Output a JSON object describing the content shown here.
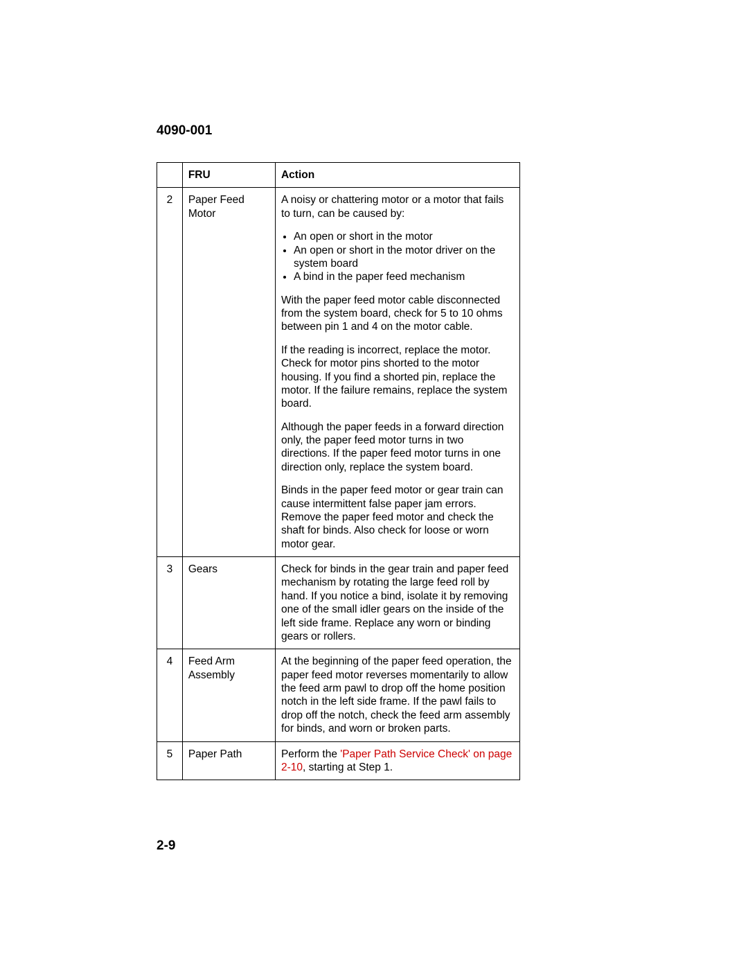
{
  "header": "4090-001",
  "pageNumber": "2-9",
  "table": {
    "headers": {
      "col1": "",
      "col2": "FRU",
      "col3": "Action"
    },
    "rows": [
      {
        "num": "2",
        "fru": "Paper Feed Motor",
        "action": {
          "intro": "A noisy or chattering motor or a motor that fails to turn, can be caused by:",
          "bullets": [
            "An open or short in the motor",
            "An open or short in the motor driver on the system board",
            "A bind in the paper feed mechanism"
          ],
          "p1": "With the paper feed motor cable disconnected from the system board, check for 5 to 10 ohms between pin 1 and 4 on the motor cable.",
          "p2": "If the reading is incorrect, replace the motor. Check for motor pins shorted to the motor housing. If you find a shorted pin, replace the motor. If the failure remains, replace the system board.",
          "p3": "Although the paper feeds in a forward direction only, the paper feed motor turns in two directions. If the paper feed motor turns in one direction only, replace the system board.",
          "p4": "Binds in the paper feed motor or gear train can cause intermittent false paper jam errors. Remove the paper feed motor and check the shaft for binds. Also check for loose or worn motor gear."
        }
      },
      {
        "num": "3",
        "fru": "Gears",
        "action": {
          "p1": "Check for binds in the gear train and paper feed mechanism by rotating the large feed roll by hand. If you notice a bind, isolate it by removing one of the small idler gears on the inside of the left side frame. Replace any worn or binding gears or rollers."
        }
      },
      {
        "num": "4",
        "fru": "Feed Arm Assembly",
        "action": {
          "p1": "At the beginning of the paper feed operation, the paper feed motor reverses momentarily to allow the feed arm pawl to drop off the home position notch in the left side frame. If the pawl fails to drop off the notch, check the feed arm assembly for binds, and worn or broken parts."
        }
      },
      {
        "num": "5",
        "fru": "Paper Path",
        "action": {
          "pre": "Perform the ",
          "link": "'Paper Path Service Check' on page 2-10",
          "post": ", starting at Step 1."
        }
      }
    ]
  }
}
